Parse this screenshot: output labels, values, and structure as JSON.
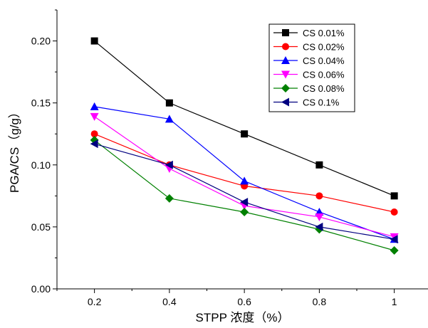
{
  "chart_data": {
    "type": "line",
    "xlabel": "STPP 浓度（%）",
    "ylabel": "PGA/CS（g/g）",
    "x": [
      0.2,
      0.4,
      0.6,
      0.8,
      1
    ],
    "x_tick_labels": [
      "0.2",
      "0.4",
      "0.6",
      "0.8",
      "1"
    ],
    "y_tick_labels": [
      "0.00",
      "0.05",
      "0.10",
      "0.15",
      "0.20"
    ],
    "xlim": [
      0.1,
      1.09
    ],
    "ylim": [
      0,
      0.225
    ],
    "grid": false,
    "legend_position": "top-right",
    "series": [
      {
        "name": "CS 0.01%",
        "values": [
          0.2,
          0.15,
          0.125,
          0.1,
          0.075
        ],
        "color": "#000000",
        "marker": "square"
      },
      {
        "name": "CS 0.02%",
        "values": [
          0.125,
          0.1,
          0.083,
          0.075,
          0.062
        ],
        "color": "#ff0000",
        "marker": "circle"
      },
      {
        "name": "CS 0.04%",
        "values": [
          0.147,
          0.137,
          0.087,
          0.062,
          0.04
        ],
        "color": "#0000ff",
        "marker": "triangle-up"
      },
      {
        "name": "CS 0.06%",
        "values": [
          0.139,
          0.097,
          0.067,
          0.058,
          0.042
        ],
        "color": "#ff00ff",
        "marker": "triangle-down"
      },
      {
        "name": "CS 0.08%",
        "values": [
          0.12,
          0.073,
          0.062,
          0.048,
          0.031
        ],
        "color": "#008000",
        "marker": "diamond"
      },
      {
        "name": "CS 0.1%",
        "values": [
          0.117,
          0.1,
          0.07,
          0.05,
          0.04
        ],
        "color": "#000080",
        "marker": "triangle-left"
      }
    ]
  }
}
